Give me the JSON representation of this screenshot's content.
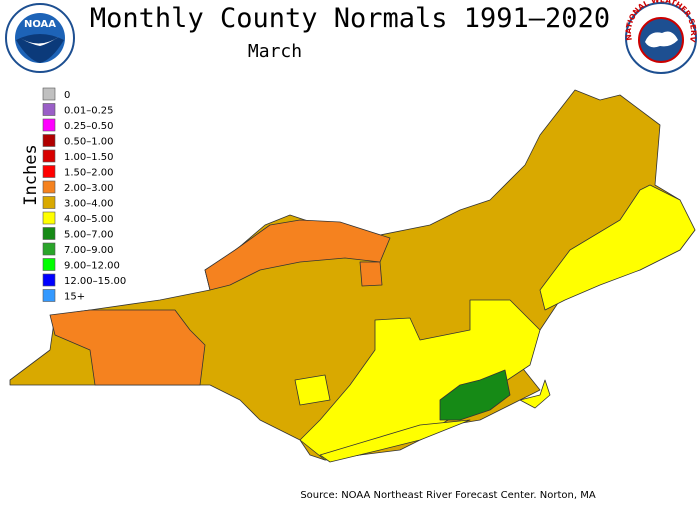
{
  "header": {
    "title": "Monthly County Normals 1991–2020",
    "subtitle": "March"
  },
  "logos": {
    "noaa": "NOAA",
    "nws": "NATIONAL WEATHER SERVICE"
  },
  "legend": {
    "axis_label": "Inches",
    "items": [
      {
        "label": "0",
        "color": "#c0c0c0"
      },
      {
        "label": "0.01–0.25",
        "color": "#9a5fc7"
      },
      {
        "label": "0.25–0.50",
        "color": "#ff00ff"
      },
      {
        "label": "0.50–1.00",
        "color": "#b00000"
      },
      {
        "label": "1.00–1.50",
        "color": "#d80000"
      },
      {
        "label": "1.50–2.00",
        "color": "#ff0000"
      },
      {
        "label": "2.00–3.00",
        "color": "#f5821f"
      },
      {
        "label": "3.00–4.00",
        "color": "#d9a900"
      },
      {
        "label": "4.00–5.00",
        "color": "#ffff00"
      },
      {
        "label": "5.00–7.00",
        "color": "#168a16"
      },
      {
        "label": "7.00–9.00",
        "color": "#2aa52a"
      },
      {
        "label": "9.00–12.00",
        "color": "#00ff00"
      },
      {
        "label": "12.00–15.00",
        "color": "#0000ff"
      },
      {
        "label": "15+",
        "color": "#3399ff"
      }
    ]
  },
  "source": "Source: NOAA Northeast River Forecast Center. Norton, MA"
}
